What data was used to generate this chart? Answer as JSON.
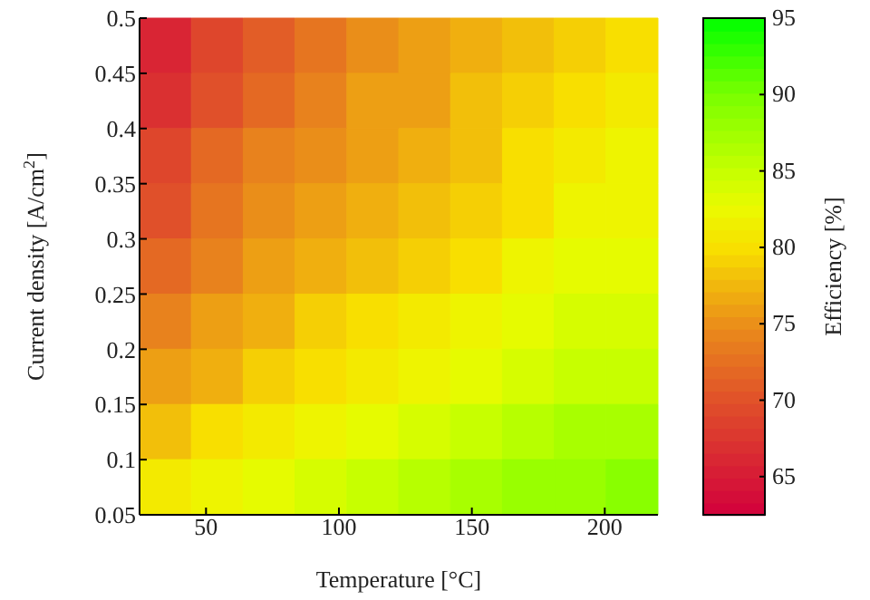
{
  "chart_data": {
    "type": "heatmap",
    "xlabel": "Temperature [°C]",
    "ylabel": "Current density [A/cm$^{2}$]",
    "clabel": "Efficiency [%]",
    "x": [
      34.75,
      54.25,
      73.75,
      93.25,
      112.75,
      132.25,
      151.75,
      171.25,
      190.75,
      210.25
    ],
    "xlim": [
      25,
      220
    ],
    "xticks": [
      50,
      100,
      150,
      200
    ],
    "ylim": [
      0.05,
      0.5
    ],
    "yticks": [
      0.05,
      0.1,
      0.15,
      0.2,
      0.25,
      0.3,
      0.35,
      0.4,
      0.45,
      0.5
    ],
    "clim": [
      62.5,
      95
    ],
    "cticks": [
      65,
      70,
      75,
      80,
      85,
      90,
      95
    ],
    "cells": [
      [
        66,
        69,
        71,
        73,
        75,
        76,
        77,
        78,
        79,
        80
      ],
      [
        67,
        70,
        72,
        74,
        76,
        76,
        78,
        79,
        80,
        81
      ],
      [
        69,
        72,
        74,
        75,
        76,
        77,
        78,
        80,
        81,
        82
      ],
      [
        70,
        73,
        75,
        76,
        77,
        78,
        79,
        80,
        82,
        82
      ],
      [
        72,
        74,
        76,
        77,
        78,
        79,
        80,
        82,
        83,
        83
      ],
      [
        74,
        76,
        77,
        79,
        80,
        81,
        82,
        83,
        84,
        84
      ],
      [
        76,
        77,
        79,
        80,
        81,
        82,
        83,
        84,
        85,
        85
      ],
      [
        78,
        80,
        81,
        82,
        83,
        84,
        85,
        86,
        87,
        87
      ],
      [
        81,
        82,
        83,
        84,
        85,
        86,
        87,
        88,
        88,
        89
      ]
    ]
  }
}
